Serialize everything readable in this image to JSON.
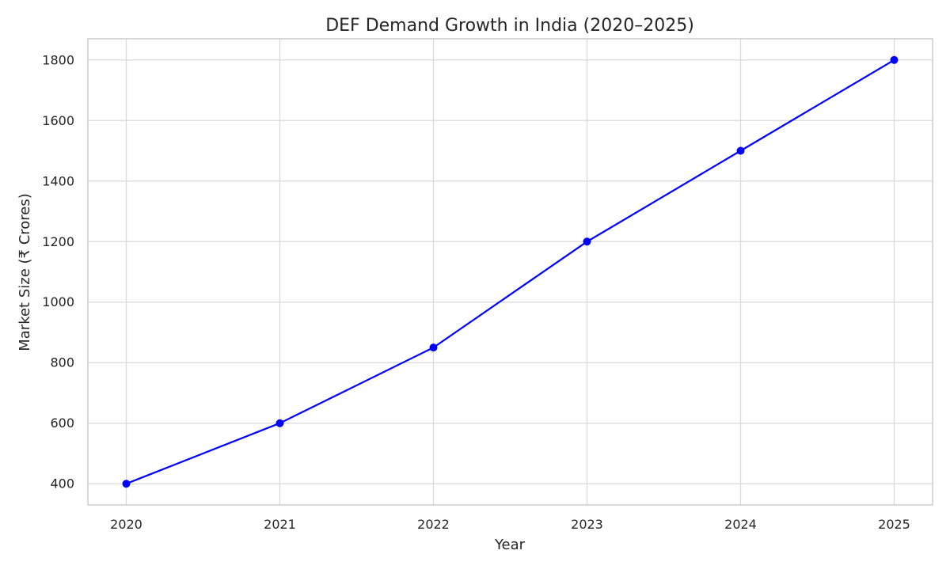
{
  "chart_data": {
    "type": "line",
    "title": "DEF Demand Growth in India (2020–2025)",
    "xlabel": "Year",
    "ylabel": "Market Size (₹ Crores)",
    "x": [
      2020,
      2021,
      2022,
      2023,
      2024,
      2025
    ],
    "series": [
      {
        "values": [
          400,
          600,
          850,
          1200,
          1500,
          1800
        ],
        "color": "#0000ff",
        "marker": "circle"
      }
    ],
    "x_ticks": [
      "2020",
      "2021",
      "2022",
      "2023",
      "2024",
      "2025"
    ],
    "y_ticks": [
      400,
      600,
      800,
      1000,
      1200,
      1400,
      1600,
      1800
    ],
    "xlim": [
      2019.75,
      2025.25
    ],
    "ylim": [
      330,
      1870
    ],
    "grid": true,
    "legend": "none",
    "colors": {
      "background": "#ffffff",
      "grid": "#d9d9d9",
      "frame": "#cccccc",
      "text": "#262626",
      "line": "#0000ff"
    }
  }
}
